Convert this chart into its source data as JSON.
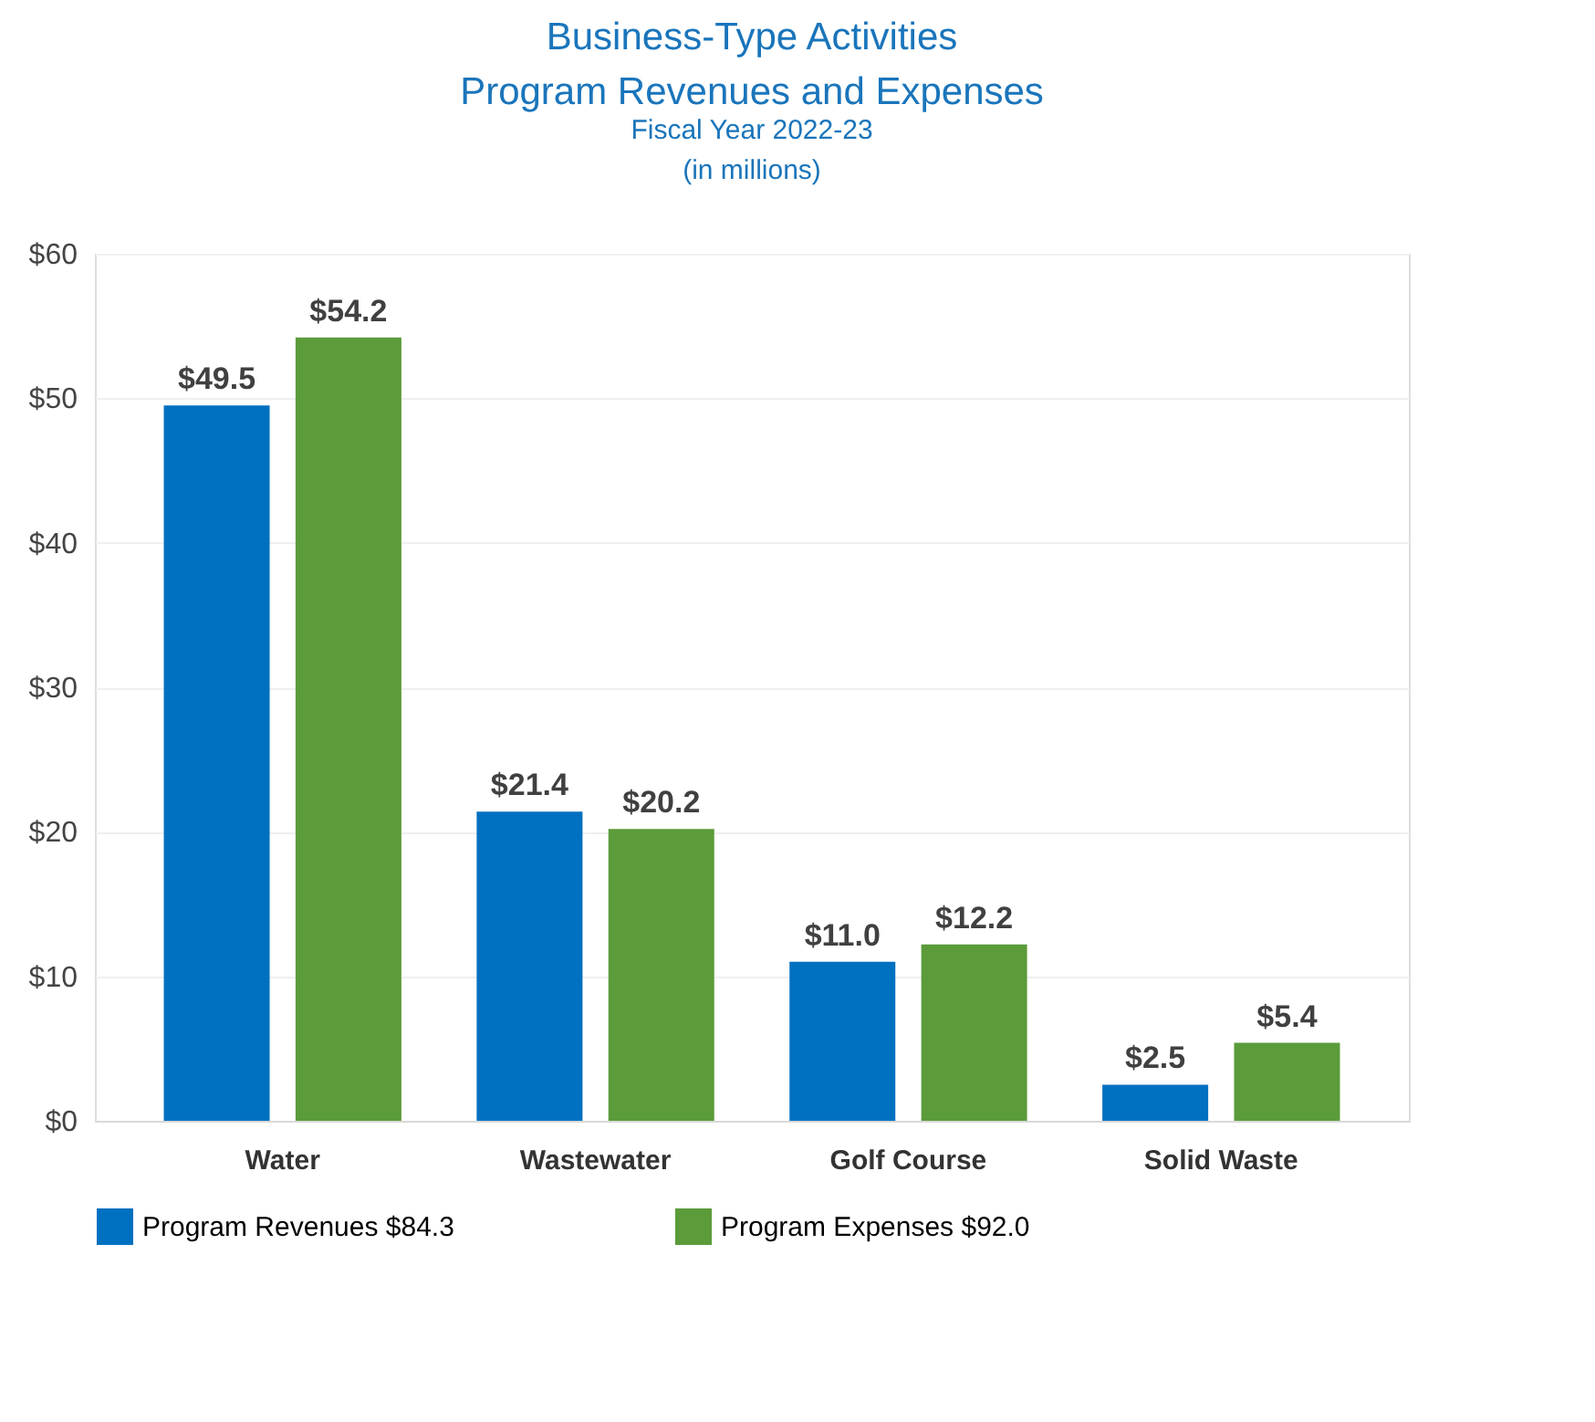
{
  "chart_data": {
    "type": "bar",
    "title": "Business-Type Activities",
    "subtitle": "Program Revenues and Expenses",
    "annotations": [
      "Fiscal Year 2022-23",
      "(in millions)"
    ],
    "categories": [
      "Water",
      "Wastewater",
      "Golf Course",
      "Solid Waste"
    ],
    "series": [
      {
        "name": "Program Revenues $84.3",
        "color": "#0070c0",
        "values": [
          49.5,
          21.4,
          11.0,
          2.5
        ],
        "value_labels": [
          "$49.5",
          "$21.4",
          "$11.0",
          "$2.5"
        ]
      },
      {
        "name": "Program Expenses $92.0",
        "color": "#5b9b3a",
        "values": [
          54.2,
          20.2,
          12.2,
          5.4
        ],
        "value_labels": [
          "$54.2",
          "$20.2",
          "$12.2",
          "$5.4"
        ]
      }
    ],
    "ylim": [
      0,
      60
    ],
    "yticks": [
      {
        "value": 0,
        "label": "$0"
      },
      {
        "value": 10,
        "label": "$10"
      },
      {
        "value": 20,
        "label": "$20"
      },
      {
        "value": 30,
        "label": "$30"
      },
      {
        "value": 40,
        "label": "$40"
      },
      {
        "value": 50,
        "label": "$50"
      },
      {
        "value": 60,
        "label": "$60"
      }
    ],
    "grid": "y",
    "legend": "bottom"
  }
}
